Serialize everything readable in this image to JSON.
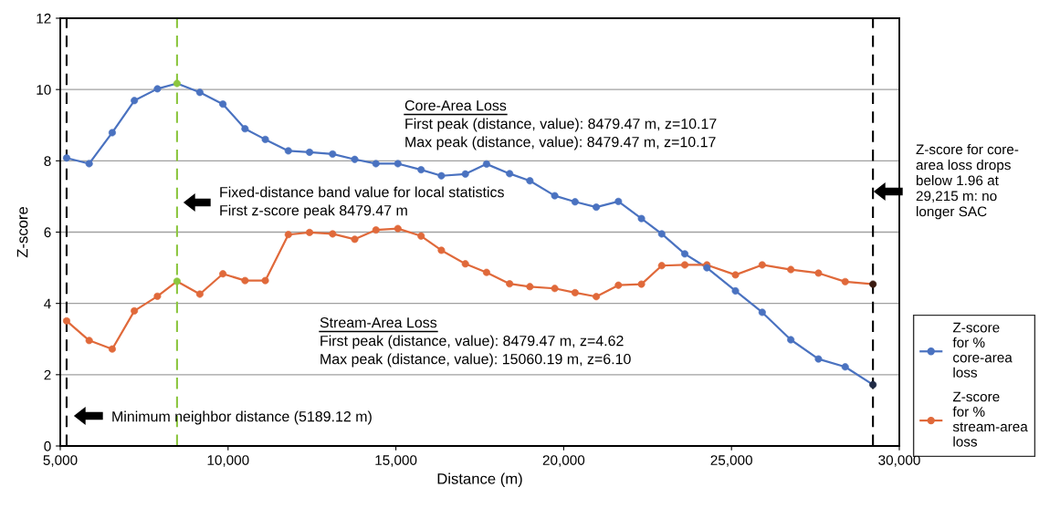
{
  "chart_data": {
    "type": "line",
    "xlabel": "Distance (m)",
    "ylabel": "Z-score",
    "x": [
      5189.12,
      5862,
      6549,
      7208,
      7895,
      8479.47,
      9159,
      9846,
      10505,
      11109,
      11796,
      12428,
      13115,
      13774,
      14406,
      15060.19,
      15752,
      16356,
      17070,
      17702,
      18389,
      18993,
      19734,
      20339,
      20971,
      21630,
      22317,
      22921,
      23608,
      24267,
      25118,
      25915,
      26767,
      27591,
      28387,
      29215
    ],
    "series": [
      {
        "name": "Z-score for % core-area loss",
        "color": "#4a72c0",
        "colors": [
          "#4a72c0",
          "#4a72c0",
          "#4a72c0",
          "#4a72c0",
          "#4a72c0",
          "#8cc63f",
          "#4a72c0",
          "#4a72c0",
          "#4a72c0",
          "#4a72c0",
          "#4a72c0",
          "#4a72c0",
          "#4a72c0",
          "#4a72c0",
          "#4a72c0",
          "#4a72c0",
          "#4a72c0",
          "#4a72c0",
          "#4a72c0",
          "#4a72c0",
          "#4a72c0",
          "#4a72c0",
          "#4a72c0",
          "#4a72c0",
          "#4a72c0",
          "#4a72c0",
          "#4a72c0",
          "#4a72c0",
          "#4a72c0",
          "#4a72c0",
          "#4a72c0",
          "#4a72c0",
          "#4a72c0",
          "#4a72c0",
          "#4a72c0",
          "#1f2a44"
        ],
        "values": [
          8.08,
          7.92,
          8.79,
          9.69,
          10.02,
          10.17,
          9.92,
          9.59,
          8.9,
          8.6,
          8.28,
          8.24,
          8.19,
          8.04,
          7.92,
          7.92,
          7.75,
          7.58,
          7.63,
          7.91,
          7.64,
          7.44,
          7.02,
          6.85,
          6.7,
          6.86,
          6.38,
          5.95,
          5.39,
          5.0,
          4.35,
          3.75,
          2.98,
          2.44,
          2.22,
          1.72
        ]
      },
      {
        "name": "Z-score for % stream-area loss",
        "color": "#e0693a",
        "colors": [
          "#e0693a",
          "#e0693a",
          "#e0693a",
          "#e0693a",
          "#e0693a",
          "#8cc63f",
          "#e0693a",
          "#e0693a",
          "#e0693a",
          "#e0693a",
          "#e0693a",
          "#e0693a",
          "#e0693a",
          "#e0693a",
          "#e0693a",
          "#e0693a",
          "#e0693a",
          "#e0693a",
          "#e0693a",
          "#e0693a",
          "#e0693a",
          "#e0693a",
          "#e0693a",
          "#e0693a",
          "#e0693a",
          "#e0693a",
          "#e0693a",
          "#e0693a",
          "#e0693a",
          "#e0693a",
          "#e0693a",
          "#e0693a",
          "#e0693a",
          "#e0693a",
          "#e0693a",
          "#3a1a10"
        ],
        "values": [
          3.51,
          2.96,
          2.72,
          3.79,
          4.2,
          4.62,
          4.26,
          4.83,
          4.64,
          4.64,
          5.93,
          5.99,
          5.95,
          5.8,
          6.06,
          6.1,
          5.89,
          5.49,
          5.11,
          4.87,
          4.55,
          4.47,
          4.42,
          4.3,
          4.19,
          4.51,
          4.54,
          5.06,
          5.08,
          5.08,
          4.8,
          5.08,
          4.95,
          4.85,
          4.61,
          4.54
        ]
      }
    ],
    "xlim": [
      5000,
      30000
    ],
    "xticks": [
      {
        "value": 5000,
        "label": "5,000"
      },
      {
        "value": 10000,
        "label": "10,000"
      },
      {
        "value": 15000,
        "label": "15,000"
      },
      {
        "value": 20000,
        "label": "20,000"
      },
      {
        "value": 25000,
        "label": "25,000"
      },
      {
        "value": 30000,
        "label": "30,000"
      }
    ],
    "ylim": [
      0,
      12
    ],
    "yticks": [
      0,
      2,
      4,
      6,
      8,
      10,
      12
    ],
    "ref_lines": [
      {
        "axis": "x",
        "value": 5189.12,
        "color": "#000000",
        "line_style": "dashed"
      },
      {
        "axis": "x",
        "value": 8479.47,
        "color": "#8cc63f",
        "line_style": "dashed"
      },
      {
        "axis": "x",
        "value": 29215,
        "color": "#000000",
        "line_style": "dashed"
      }
    ],
    "annotations": [
      "Core-Area Loss",
      "First peak (distance, value): 8479.47 m, z=10.17",
      "Max peak (distance, value): 8479.47 m, z=10.17",
      "Fixed-distance band value for local statistics",
      "First z-score peak 8479.47 m",
      "Stream-Area Loss",
      "First peak (distance, value): 8479.47 m, z=4.62",
      "Max peak (distance, value): 15060.19 m, z=6.10",
      "Minimum neighbor distance (5189.12 m)",
      "Z-score for core-area loss drops below 1.96 at 29,215 m: no longer SAC"
    ],
    "grid": "y",
    "legend": "right",
    "marker": "circle",
    "line_style": "solid"
  }
}
